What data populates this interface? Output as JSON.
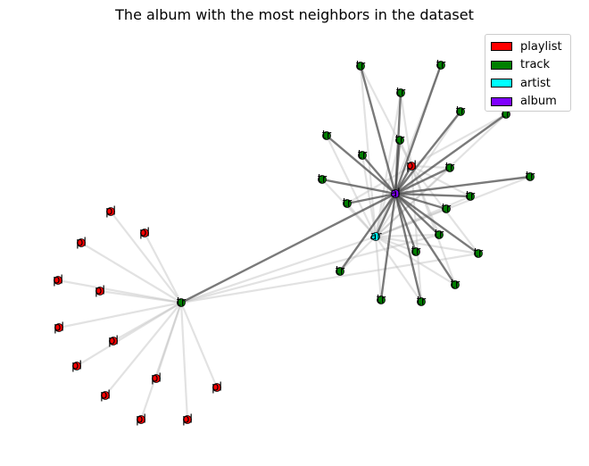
{
  "title": "The album with the most neighbors in the dataset",
  "legend": [
    {
      "label": "playlist",
      "color": "#ff0000"
    },
    {
      "label": "track",
      "color": "#008000"
    },
    {
      "label": "artist",
      "color": "#00ffff"
    },
    {
      "label": "album",
      "color": "#7f00ff"
    }
  ],
  "node_types": {
    "playlist": {
      "label": "pl",
      "color": "#ff0000"
    },
    "track": {
      "label": "tr",
      "color": "#008000"
    },
    "artist": {
      "label": "ar",
      "color": "#00ffff"
    },
    "album": {
      "label": "al",
      "color": "#7f00ff"
    }
  }
}
